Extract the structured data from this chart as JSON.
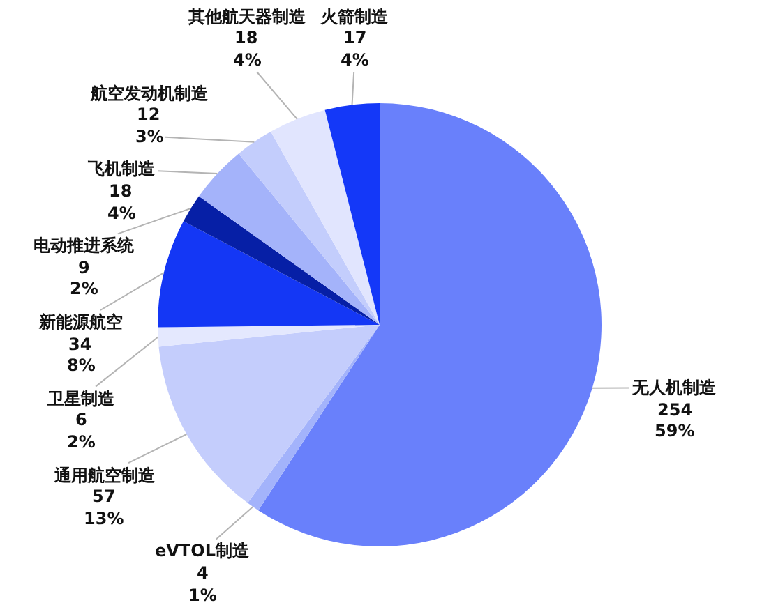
{
  "chart_data": {
    "type": "pie",
    "categories": [
      "无人机制造",
      "eVTOL制造",
      "通用航空制造",
      "卫星制造",
      "新能源航空",
      "电动推进系统",
      "飞机制造",
      "航空发动机制造",
      "其他航天器制造",
      "火箭制造"
    ],
    "values": [
      254,
      4,
      57,
      6,
      34,
      9,
      18,
      12,
      18,
      17
    ],
    "value_labels": [
      "254\n59%",
      "4\n1%",
      "57\n13%",
      "6\n2%",
      "34\n8%",
      "9\n2%",
      "18\n4%",
      "12\n3%",
      "18\n4%",
      "17\n4%"
    ],
    "colors": [
      "#6980fb",
      "#a3b3fb",
      "#c4cdfc",
      "#e4e8fe",
      "#1437f5",
      "#061fa6",
      "#a4b3fa",
      "#c3cdfc",
      "#e1e5fe",
      "#1438f8"
    ]
  }
}
